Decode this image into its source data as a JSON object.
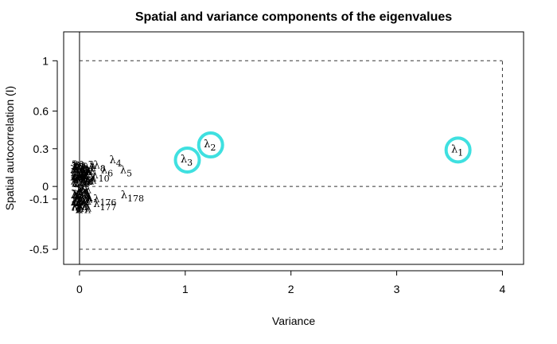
{
  "chart_data": {
    "type": "scatter",
    "title": "Spatial and variance components of the eigenvalues",
    "xlabel": "Variance",
    "ylabel": "Spatial autocorrelation (I)",
    "xlim": [
      -0.15,
      4.2
    ],
    "ylim": [
      -0.62,
      1.23
    ],
    "x_ticks": [
      0,
      1,
      2,
      3,
      4
    ],
    "x_tick_labels": [
      "0",
      "1",
      "2",
      "3",
      "4"
    ],
    "y_ticks": [
      -0.5,
      -0.1,
      0,
      0.3,
      0.6,
      1
    ],
    "y_tick_labels": [
      "-0.5",
      "-0.1",
      "0",
      "0.3",
      "0.6",
      "1"
    ],
    "reference_box": {
      "xmin": 0,
      "xmax": 4,
      "ymin": -0.5,
      "ymax": 1.0,
      "zero_line": 0
    },
    "circle_color": "#3fe0e0",
    "highlighted": [
      {
        "label": "λ1",
        "base": "λ",
        "sub": "1",
        "x": 3.58,
        "y": 0.29
      },
      {
        "label": "λ2",
        "base": "λ",
        "sub": "2",
        "x": 1.24,
        "y": 0.33
      },
      {
        "label": "λ3",
        "base": "λ",
        "sub": "3",
        "x": 1.02,
        "y": 0.21
      }
    ],
    "labeled_points": [
      {
        "base": "λ",
        "sub": "4",
        "x": 0.34,
        "y": 0.21
      },
      {
        "base": "λ",
        "sub": "5",
        "x": 0.44,
        "y": 0.13
      },
      {
        "base": "λ",
        "sub": "6",
        "x": 0.26,
        "y": 0.13
      },
      {
        "base": "λ",
        "sub": "8",
        "x": 0.19,
        "y": 0.17
      },
      {
        "base": "λ",
        "sub": "10",
        "x": 0.2,
        "y": 0.09
      },
      {
        "base": "λ",
        "sub": "176",
        "x": 0.24,
        "y": -0.1
      },
      {
        "base": "λ",
        "sub": "177",
        "x": 0.24,
        "y": -0.14
      },
      {
        "base": "λ",
        "sub": "178",
        "x": 0.5,
        "y": -0.07
      }
    ]
  }
}
